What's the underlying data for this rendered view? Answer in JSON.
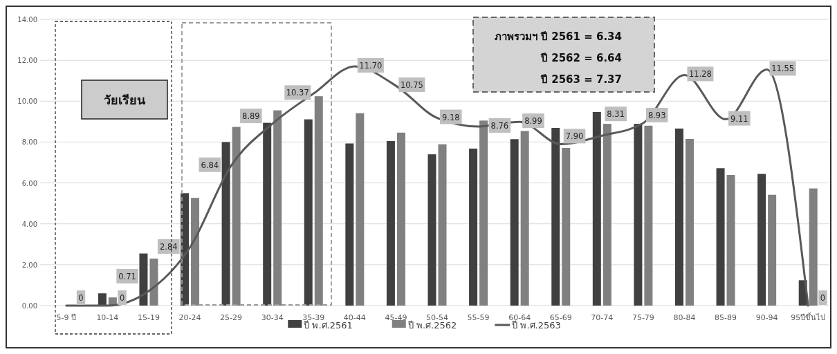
{
  "chart_data": {
    "type": "bar",
    "categories": [
      "5-9 ปี",
      "10-14",
      "15-19",
      "20-24",
      "25-29",
      "30-34",
      "35-39",
      "40-44",
      "45-49",
      "50-54",
      "55-59",
      "60-64",
      "65-69",
      "70-74",
      "75-79",
      "80-84",
      "85-89",
      "90-94",
      "95ปีขึ้นไป"
    ],
    "series": [
      {
        "name": "ปี พ.ศ.2561",
        "color": "#404040",
        "values": [
          0,
          0.6,
          2.55,
          5.5,
          8.0,
          8.94,
          9.11,
          7.93,
          8.05,
          7.4,
          7.68,
          8.14,
          8.69,
          9.47,
          8.89,
          8.66,
          6.72,
          6.44,
          1.24
        ]
      },
      {
        "name": "ปี พ.ศ.2562",
        "color": "#808080",
        "values": [
          0,
          0.4,
          2.3,
          5.27,
          8.74,
          9.55,
          10.24,
          9.41,
          8.46,
          7.89,
          9.05,
          8.54,
          7.71,
          8.89,
          8.8,
          8.15,
          6.39,
          5.42,
          5.73
        ]
      },
      {
        "name": "ปี พ.ศ.2563",
        "type": "line",
        "color": "#595959",
        "values": [
          0,
          0,
          0.71,
          2.84,
          6.84,
          8.89,
          10.37,
          11.7,
          10.75,
          9.18,
          8.76,
          8.99,
          7.9,
          8.31,
          8.93,
          11.28,
          9.11,
          11.55,
          0
        ],
        "value_labels": [
          "0",
          "0",
          "0.71",
          "2.84",
          "6.84",
          "8.89",
          "10.37",
          "11.70",
          "10.75",
          "9.18",
          "8.76",
          "8.99",
          "7.90",
          "8.31",
          "8.93",
          "11.28",
          "9.11",
          "11.55",
          "0"
        ]
      }
    ],
    "ylim": [
      0,
      14
    ],
    "yticks": [
      {
        "value": 0,
        "label": "0.00"
      },
      {
        "value": 2,
        "label": "2.00"
      },
      {
        "value": 4,
        "label": "4.00"
      },
      {
        "value": 6,
        "label": "6.00"
      },
      {
        "value": 8,
        "label": "8.00"
      },
      {
        "value": 10,
        "label": "10.00"
      },
      {
        "value": 12,
        "label": "12.00"
      },
      {
        "value": 14,
        "label": "14.00"
      }
    ],
    "grid": "y",
    "legend": "bottom",
    "annotations": [
      "วัยเรียน",
      "ภาพรวมฯ ปี 2561 = 6.34",
      "ปี 2562 = 6.64",
      "ปี 2563 = 7.37"
    ]
  }
}
